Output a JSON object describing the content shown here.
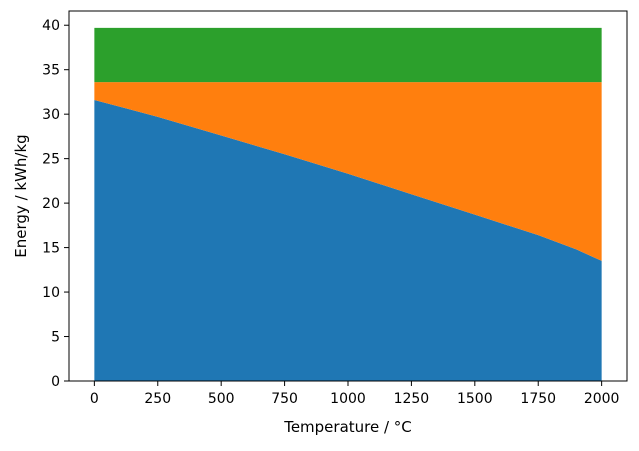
{
  "chart_data": {
    "type": "area",
    "stacked": true,
    "title": "",
    "xlabel": "Temperature / °C",
    "ylabel": "Energy / kWh/kg",
    "xlim": [
      -100,
      2100
    ],
    "ylim": [
      0,
      41.6
    ],
    "xticks": [
      0,
      250,
      500,
      750,
      1000,
      1250,
      1500,
      1750,
      2000
    ],
    "yticks": [
      0,
      5,
      10,
      15,
      20,
      25,
      30,
      35,
      40
    ],
    "grid": false,
    "legend": "none",
    "x": [
      0,
      250,
      500,
      750,
      1000,
      1250,
      1500,
      1750,
      1900,
      2000
    ],
    "series": [
      {
        "color": "#1f77b4",
        "values": [
          31.6,
          29.7,
          27.6,
          25.5,
          23.3,
          21.0,
          18.7,
          16.4,
          14.8,
          13.5
        ]
      },
      {
        "color": "#ff7f0e",
        "values": [
          2.0,
          3.9,
          6.0,
          8.1,
          10.3,
          12.6,
          14.9,
          17.2,
          18.8,
          20.1
        ]
      },
      {
        "color": "#2ca02c",
        "values": [
          6.1,
          6.1,
          6.1,
          6.1,
          6.1,
          6.1,
          6.1,
          6.1,
          6.1,
          6.1
        ]
      }
    ]
  }
}
